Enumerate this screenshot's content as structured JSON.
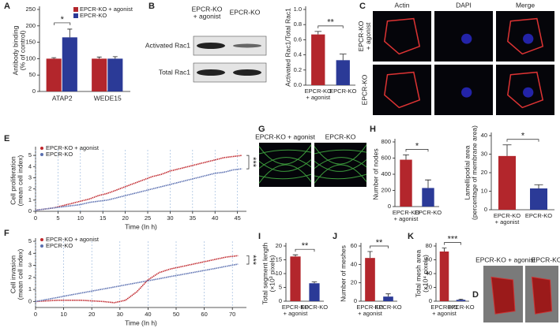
{
  "chart_data": [
    {
      "panel": "A",
      "type": "bar",
      "categories": [
        "ATAP2",
        "WEDE15"
      ],
      "series": [
        {
          "name": "EPCR-KO + agonist",
          "color": "#b3262c",
          "values": [
            100,
            100
          ],
          "errors": [
            3,
            5
          ]
        },
        {
          "name": "EPCR-KO",
          "color": "#2b3a97",
          "values": [
            165,
            100
          ],
          "errors": [
            25,
            6
          ]
        }
      ],
      "ylabel": [
        "Antibody binding",
        "(% of control)"
      ],
      "ylim": [
        0,
        250
      ],
      "yticks": [
        0,
        50,
        100,
        150,
        200,
        250
      ],
      "legend": "upper right",
      "significance": "*"
    },
    {
      "panel": "B",
      "type": "bar",
      "categories": [
        [
          "EPCR-KO",
          "+ agonist"
        ],
        [
          "EPCR-KO"
        ]
      ],
      "values": [
        0.67,
        0.33
      ],
      "errors": [
        0.04,
        0.08
      ],
      "colors": [
        "#b3262c",
        "#2b3a97"
      ],
      "ylabel": [
        "Activated Rac1/Total Rac1"
      ],
      "ylim": [
        0,
        1
      ],
      "yticks": [
        {
          "value": 0,
          "label": "0.0"
        },
        0.2,
        0.4,
        0.6,
        0.8,
        {
          "value": 1,
          "label": "1.0"
        }
      ],
      "significance": "**"
    },
    {
      "panel": "E",
      "type": "line",
      "x": [
        0,
        2,
        4,
        6,
        8,
        10,
        12,
        14,
        16,
        18,
        20,
        22,
        24,
        26,
        28,
        30,
        32,
        34,
        36,
        38,
        40,
        42,
        44,
        46
      ],
      "series": [
        {
          "name": "EPCR-KO + agonist",
          "color": "#c0262c",
          "values": [
            0.1,
            0.2,
            0.3,
            0.5,
            0.7,
            0.9,
            1.1,
            1.4,
            1.6,
            1.9,
            2.2,
            2.5,
            2.8,
            3.1,
            3.3,
            3.6,
            3.8,
            4.0,
            4.2,
            4.4,
            4.6,
            4.8,
            4.9,
            5.0
          ]
        },
        {
          "name": "EPCR-KO",
          "color": "#5a6fb0",
          "values": [
            0.1,
            0.2,
            0.3,
            0.4,
            0.5,
            0.6,
            0.8,
            0.9,
            1.0,
            1.2,
            1.4,
            1.6,
            1.8,
            2.0,
            2.2,
            2.4,
            2.6,
            2.8,
            3.0,
            3.2,
            3.4,
            3.5,
            3.7,
            3.8
          ]
        }
      ],
      "xlim": [
        0,
        47
      ],
      "xticks": [
        0,
        5,
        10,
        15,
        20,
        25,
        30,
        35,
        40,
        45
      ],
      "ylim": [
        0,
        5.5
      ],
      "yticks": [
        0,
        1,
        2,
        3,
        4,
        5
      ],
      "xlabel": "Time (In h)",
      "ylabel": [
        "Cell proliferation",
        "(mean cell index)"
      ],
      "grid_x": true,
      "legend": "upper left",
      "significance": "***"
    },
    {
      "panel": "H",
      "type": "bar",
      "categories": [
        [
          "EPCR-KO",
          "+ agonist"
        ],
        [
          "EPCR-KO"
        ]
      ],
      "values": [
        580,
        230
      ],
      "errors": [
        60,
        100
      ],
      "colors": [
        "#b3262c",
        "#2b3a97"
      ],
      "ylabel": [
        "Number of nodes"
      ],
      "ylim": [
        0,
        800
      ],
      "yticks": [
        0,
        200,
        400,
        600,
        800
      ],
      "significance": "*"
    },
    {
      "type": "bar",
      "categories": [
        [
          "EPCR-KO",
          "+ agonist"
        ],
        [
          "EPCR-KO"
        ]
      ],
      "values": [
        29,
        11.5
      ],
      "errors": [
        6,
        2
      ],
      "colors": [
        "#b3262c",
        "#2b3a97"
      ],
      "ylabel": [
        "Lamellipodial area",
        "(percentage of membrane area)"
      ],
      "ylim": [
        0,
        40
      ],
      "yticks": [
        0,
        10,
        20,
        30,
        40
      ],
      "significance": "*"
    },
    {
      "panel": "F",
      "type": "line",
      "x": [
        0,
        4,
        8,
        12,
        16,
        20,
        24,
        28,
        32,
        36,
        40,
        44,
        48,
        52,
        56,
        60,
        64,
        68,
        72
      ],
      "series": [
        {
          "name": "EPCR-KO + agonist",
          "color": "#c0262c",
          "values": [
            0,
            0.05,
            0.1,
            0.1,
            0.1,
            0.05,
            0,
            -0.1,
            0.1,
            0.8,
            1.8,
            2.4,
            2.7,
            2.9,
            3.1,
            3.3,
            3.5,
            3.7,
            3.8
          ]
        },
        {
          "name": "EPCR-KO",
          "color": "#5a6fb0",
          "values": [
            0,
            0.17,
            0.34,
            0.52,
            0.69,
            0.86,
            1.03,
            1.2,
            1.38,
            1.55,
            1.72,
            1.89,
            2.07,
            2.24,
            2.41,
            2.58,
            2.75,
            2.93,
            3.1
          ]
        }
      ],
      "xlim": [
        0,
        75
      ],
      "xticks": [
        0,
        10,
        20,
        30,
        40,
        50,
        60,
        70
      ],
      "ylim": [
        -0.5,
        5
      ],
      "yticks": [
        0,
        1,
        2,
        3,
        4,
        5
      ],
      "xlabel": "Time (In h)",
      "ylabel": [
        "Cell invasion",
        "(mean cell index)"
      ],
      "grid_x": true,
      "legend": "upper left",
      "significance": "***"
    },
    {
      "panel": "I",
      "type": "bar",
      "categories": [
        [
          "EPCR-KO",
          "+ agonist"
        ],
        [
          "EPCR-KO"
        ]
      ],
      "values": [
        16.2,
        6.5
      ],
      "errors": [
        0.6,
        0.5
      ],
      "colors": [
        "#b3262c",
        "#2b3a97"
      ],
      "ylabel": [
        "Total segment length",
        "(×10³ pixels)"
      ],
      "ylim": [
        0,
        20
      ],
      "yticks": [
        0,
        5,
        10,
        15,
        20
      ],
      "significance": "**"
    },
    {
      "panel": "J",
      "type": "bar",
      "categories": [
        [
          "EPCR-KO",
          "+ agonist"
        ],
        [
          "EPCR-KO"
        ]
      ],
      "values": [
        47,
        5
      ],
      "errors": [
        7,
        3
      ],
      "colors": [
        "#b3262c",
        "#2b3a97"
      ],
      "ylabel": [
        "Number of meshes"
      ],
      "ylim": [
        0,
        60
      ],
      "yticks": [
        0,
        20,
        40,
        60
      ],
      "significance": "**"
    },
    {
      "panel": "K",
      "type": "bar",
      "categories": [
        [
          "EPCR-KO",
          "+ agonist"
        ],
        [
          "EPCR-KO"
        ]
      ],
      "values": [
        72,
        2
      ],
      "errors": [
        5,
        1
      ],
      "colors": [
        "#b3262c",
        "#2b3a97"
      ],
      "ylabel": [
        "Total mesh area",
        "(×10⁴ pixels)"
      ],
      "ylim": [
        0,
        80
      ],
      "yticks": [
        0,
        20,
        40,
        60,
        80
      ],
      "significance": "***"
    }
  ],
  "blot": {
    "columns": [
      [
        "EPCR-KO",
        "+ agonist"
      ],
      [
        "EPCR-KO"
      ]
    ],
    "rows": [
      "Activated Rac1",
      "Total Rac1"
    ]
  },
  "image_panels": [
    {
      "panel": "C",
      "columns": [
        "Actin",
        "DAPI",
        "Merge"
      ],
      "rows": [
        [
          "EPCR-KO",
          "+ agonist"
        ],
        [
          "EPCR-KO"
        ]
      ]
    },
    {
      "panel": "G",
      "columns": [
        "EPCR-KO + agonist",
        "EPCR-KO"
      ]
    },
    {
      "panel": "D",
      "columns": [
        "EPCR-KO + agonist",
        "EPCR-KO"
      ]
    }
  ]
}
